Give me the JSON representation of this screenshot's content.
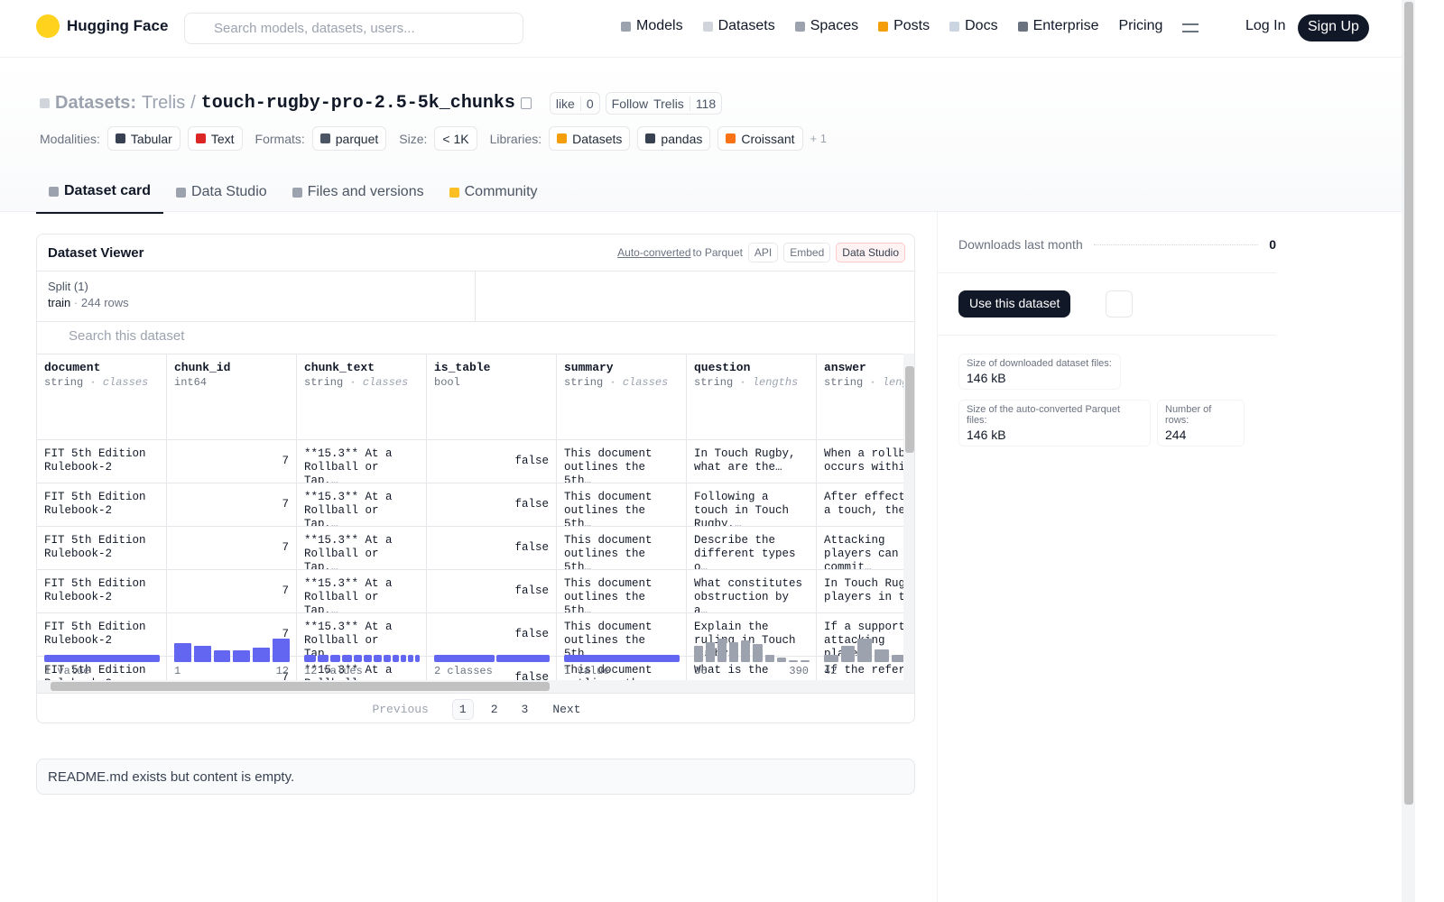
{
  "nav": {
    "brand": "Hugging Face",
    "search_placeholder": "Search models, datasets, users...",
    "links": [
      "Models",
      "Datasets",
      "Spaces",
      "Posts",
      "Docs",
      "Enterprise",
      "Pricing"
    ],
    "login": "Log In",
    "signup": "Sign Up"
  },
  "header": {
    "prefix": "Datasets:",
    "owner": "Trelis",
    "separator": "/",
    "name": "touch-rugby-pro-2.5-5k_chunks",
    "like": "like",
    "like_count": "0",
    "follow": "Follow",
    "follow_owner": "Trelis",
    "follow_count": "118",
    "tag_groups": [
      {
        "label": "Modalities:",
        "tags": [
          "Tabular",
          "Text"
        ]
      },
      {
        "label": "Formats:",
        "tags": [
          "parquet"
        ]
      },
      {
        "label": "Size:",
        "tags": [
          "< 1K"
        ]
      },
      {
        "label": "Libraries:",
        "tags": [
          "Datasets",
          "pandas",
          "Croissant"
        ]
      }
    ],
    "more_tags": "+ 1"
  },
  "tabs": [
    "Dataset card",
    "Data Studio",
    "Files and versions",
    "Community"
  ],
  "viewer": {
    "title": "Dataset Viewer",
    "auto_converted": "Auto-converted",
    "to_parquet": "to Parquet",
    "buttons": [
      "API",
      "Embed",
      "Data Studio"
    ],
    "split_label": "Split (1)",
    "split": "train",
    "split_rows": "244 rows",
    "search_placeholder": "Search this dataset",
    "columns": [
      {
        "name": "document",
        "dtype": "string",
        "kind": "classes",
        "classes": [
          244
        ],
        "footer": "1 value"
      },
      {
        "name": "chunk_id",
        "dtype": "int64",
        "histogram": [
          19,
          17,
          12,
          12,
          15,
          24
        ],
        "min": 1,
        "max": 12
      },
      {
        "name": "chunk_text",
        "dtype": "string",
        "kind": "classes",
        "classes": [
          30,
          28,
          26,
          24,
          22,
          20,
          20,
          18,
          16,
          14,
          14,
          12
        ],
        "footer": "12 values"
      },
      {
        "name": "is_table",
        "dtype": "bool",
        "classes": [
          130,
          114
        ],
        "footer": "2 classes"
      },
      {
        "name": "summary",
        "dtype": "string",
        "kind": "classes",
        "classes": [
          244
        ],
        "footer": "1 value"
      },
      {
        "name": "question",
        "dtype": "string",
        "kind": "lengths",
        "histogram": [
          18,
          22,
          26,
          22,
          24,
          20,
          8,
          5,
          2,
          2
        ],
        "min": 36,
        "max": 390
      },
      {
        "name": "answer",
        "dtype": "string",
        "kind": "lengths",
        "histogram": [
          8,
          18,
          26,
          14,
          8,
          5,
          3
        ],
        "min": 42
      }
    ],
    "rows": [
      [
        "FIT 5th Edition Rulebook-2",
        7,
        "**15.3** At a Rollball or Tap,…",
        "false",
        "This document outlines the 5th…",
        "In Touch Rugby, what are the…",
        "When a rollball occurs within…"
      ],
      [
        "FIT 5th Edition Rulebook-2",
        7,
        "**15.3** At a Rollball or Tap,…",
        "false",
        "This document outlines the 5th…",
        "Following a touch in Touch Rugby,…",
        "After effecting a touch, the…"
      ],
      [
        "FIT 5th Edition Rulebook-2",
        7,
        "**15.3** At a Rollball or Tap,…",
        "false",
        "This document outlines the 5th…",
        "Describe the different types o…",
        "Attacking players can commit…"
      ],
      [
        "FIT 5th Edition Rulebook-2",
        7,
        "**15.3** At a Rollball or Tap,…",
        "false",
        "This document outlines the 5th…",
        "What constitutes obstruction by a…",
        "In Touch Rugby, players in the…"
      ],
      [
        "FIT 5th Edition Rulebook-2",
        7,
        "**15.3** At a Rollball or Tap,…",
        "false",
        "This document outlines the 5th…",
        "Explain the ruling in Touch Rugby…",
        "If a supporting attacking player…"
      ],
      [
        "FIT 5th Edition Rulebook-2",
        7,
        "**15.3** At a Rollball or Tap,…",
        "false",
        "This document outlines the 5th…",
        "What is the",
        "If the referee"
      ]
    ],
    "pagination": {
      "previous": "Previous",
      "pages": [
        "1",
        "2",
        "3"
      ],
      "next": "Next"
    }
  },
  "readme": "README.md exists but content is empty.",
  "sidebar": {
    "downloads_label": "Downloads last month",
    "downloads_value": "0",
    "use_button": "Use this dataset",
    "stats": [
      {
        "label": "Size of downloaded dataset files:",
        "value": "146 kB"
      },
      {
        "label": "Size of the auto-converted Parquet files:",
        "value": "146 kB"
      },
      {
        "label": "Number of rows:",
        "value": "244"
      }
    ]
  }
}
